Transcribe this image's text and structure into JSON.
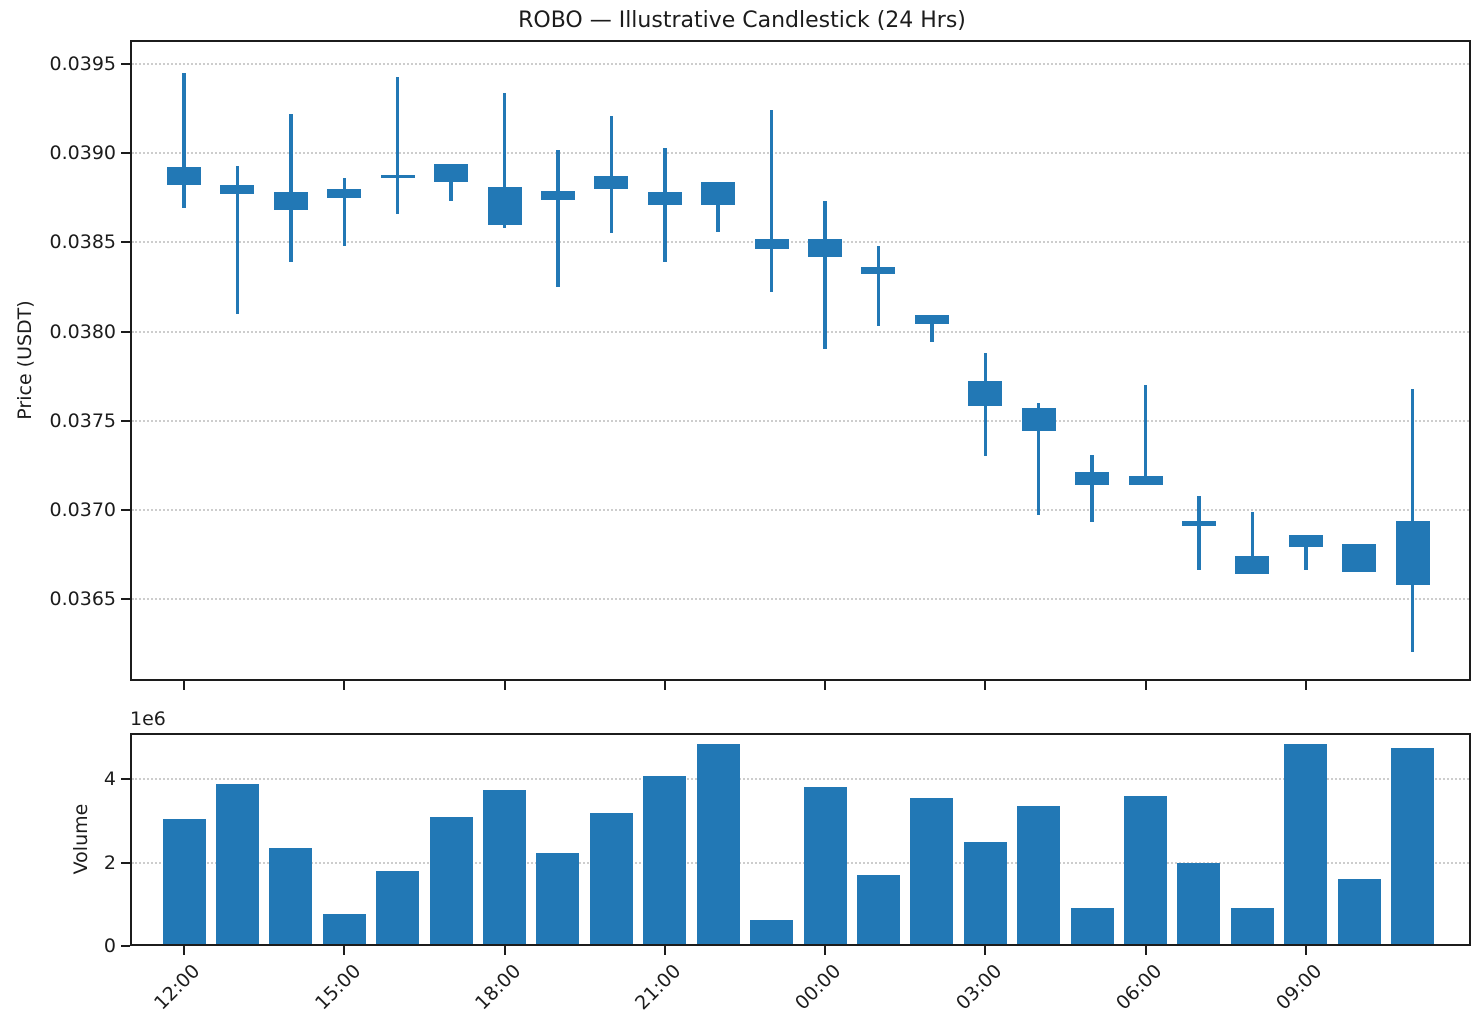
{
  "title": "ROBO — Illustrative Candlestick (24 Hrs)",
  "axes": {
    "price": {
      "label": "Price (USDT)",
      "tick_labels": [
        "0.0395",
        "0.0390",
        "0.0385",
        "0.0380",
        "0.0375",
        "0.0370",
        "0.0365"
      ]
    },
    "volume": {
      "label": "Volume",
      "offset_label": "1e6",
      "tick_labels": [
        "4",
        "2",
        "0"
      ]
    },
    "x": {
      "tick_labels": [
        "12:00",
        "15:00",
        "18:00",
        "21:00",
        "00:00",
        "03:00",
        "06:00",
        "09:00"
      ]
    }
  },
  "colors": {
    "candle": "#2278b5",
    "volume_bar": "#2278b5",
    "grid": "#cdcdcd",
    "spine": "#1c1c1c",
    "text": "#1c1c1c"
  },
  "chart_data": [
    {
      "type": "candlestick",
      "title": "ROBO — Illustrative Candlestick (24 Hrs)",
      "ylabel": "Price (USDT)",
      "ylim": [
        0.03604,
        0.039635
      ],
      "yticks": [
        0.0395,
        0.039,
        0.0385,
        0.038,
        0.0375,
        0.037,
        0.0365
      ],
      "xtick_labels": [
        "12:00",
        "15:00",
        "18:00",
        "21:00",
        "00:00",
        "03:00",
        "06:00",
        "09:00"
      ],
      "xtick_indices": [
        0,
        3,
        6,
        9,
        12,
        15,
        18,
        21
      ],
      "grid": "horizontal-dotted",
      "legend": "none",
      "note": "all candles drawn in one blue color; body direction not color-coded",
      "candles": [
        {
          "high": 0.03945,
          "low": 0.03869,
          "body_top": 0.03892,
          "body_bottom": 0.03882
        },
        {
          "high": 0.03893,
          "low": 0.0381,
          "body_top": 0.03882,
          "body_bottom": 0.03877
        },
        {
          "high": 0.03922,
          "low": 0.03839,
          "body_top": 0.03878,
          "body_bottom": 0.03868
        },
        {
          "high": 0.03886,
          "low": 0.03848,
          "body_top": 0.0388,
          "body_bottom": 0.03875
        },
        {
          "high": 0.03943,
          "low": 0.03866,
          "body_top": 0.03888,
          "body_bottom": 0.03886
        },
        {
          "high": 0.03894,
          "low": 0.03873,
          "body_top": 0.03894,
          "body_bottom": 0.03884
        },
        {
          "high": 0.03934,
          "low": 0.03858,
          "body_top": 0.03881,
          "body_bottom": 0.0386
        },
        {
          "high": 0.03902,
          "low": 0.03825,
          "body_top": 0.03879,
          "body_bottom": 0.03874
        },
        {
          "high": 0.03921,
          "low": 0.03855,
          "body_top": 0.03887,
          "body_bottom": 0.0388
        },
        {
          "high": 0.03903,
          "low": 0.03839,
          "body_top": 0.03878,
          "body_bottom": 0.03871
        },
        {
          "high": 0.03884,
          "low": 0.03856,
          "body_top": 0.03884,
          "body_bottom": 0.03871
        },
        {
          "high": 0.03924,
          "low": 0.03822,
          "body_top": 0.03852,
          "body_bottom": 0.03846
        },
        {
          "high": 0.03873,
          "low": 0.0379,
          "body_top": 0.03852,
          "body_bottom": 0.03842
        },
        {
          "high": 0.03848,
          "low": 0.03803,
          "body_top": 0.03836,
          "body_bottom": 0.03832
        },
        {
          "high": 0.03809,
          "low": 0.03794,
          "body_top": 0.03809,
          "body_bottom": 0.03804
        },
        {
          "high": 0.03788,
          "low": 0.0373,
          "body_top": 0.03772,
          "body_bottom": 0.03758
        },
        {
          "high": 0.0376,
          "low": 0.03697,
          "body_top": 0.03757,
          "body_bottom": 0.03744
        },
        {
          "high": 0.03731,
          "low": 0.03693,
          "body_top": 0.03721,
          "body_bottom": 0.03714
        },
        {
          "high": 0.0377,
          "low": 0.03714,
          "body_top": 0.03719,
          "body_bottom": 0.03714
        },
        {
          "high": 0.03708,
          "low": 0.03666,
          "body_top": 0.03694,
          "body_bottom": 0.03691
        },
        {
          "high": 0.03699,
          "low": 0.03664,
          "body_top": 0.03674,
          "body_bottom": 0.03664
        },
        {
          "high": 0.03686,
          "low": 0.03666,
          "body_top": 0.03686,
          "body_bottom": 0.03679
        },
        {
          "high": 0.03681,
          "low": 0.03665,
          "body_top": 0.03681,
          "body_bottom": 0.03665
        },
        {
          "high": 0.03768,
          "low": 0.0362,
          "body_top": 0.03694,
          "body_bottom": 0.03658
        }
      ]
    },
    {
      "type": "bar",
      "ylabel": "Volume",
      "offset_label": "1e6",
      "ylim": [
        0,
        5110000
      ],
      "yticks": [
        4000000,
        2000000,
        0
      ],
      "grid": "horizontal-dotted",
      "values": [
        3050000,
        3880000,
        2350000,
        760000,
        1800000,
        3100000,
        3750000,
        2220000,
        3200000,
        4080000,
        4850000,
        620000,
        3810000,
        1700000,
        3540000,
        2500000,
        3370000,
        900000,
        3600000,
        1980000,
        900000,
        4840000,
        1600000,
        4760000
      ]
    }
  ]
}
